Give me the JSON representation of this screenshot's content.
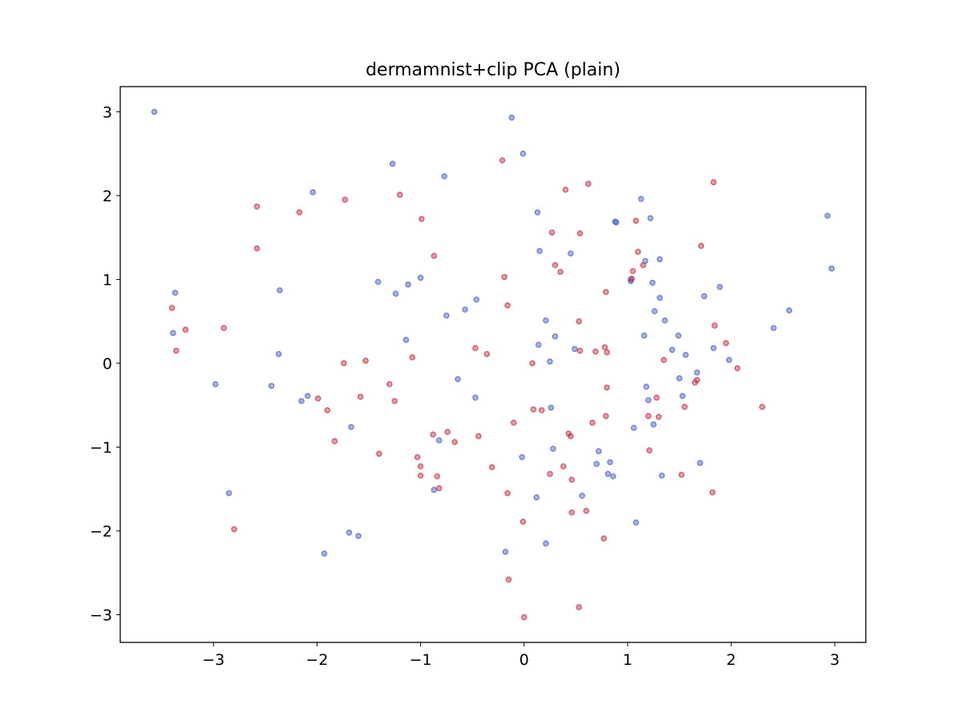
{
  "chart_data": {
    "type": "scatter",
    "title": "dermamnist+clip PCA (plain)",
    "xlabel": "",
    "ylabel": "",
    "xlim": [
      -3.9,
      3.3
    ],
    "ylim": [
      -3.33,
      3.3
    ],
    "xticks": [
      -3,
      -2,
      -1,
      0,
      1,
      2,
      3
    ],
    "yticks": [
      -3,
      -2,
      -1,
      0,
      1,
      2,
      3
    ],
    "xtick_labels": [
      "−3",
      "−2",
      "−1",
      "0",
      "1",
      "2",
      "3"
    ],
    "ytick_labels": [
      "−3",
      "−2",
      "−1",
      "0",
      "1",
      "2",
      "3"
    ],
    "grid": false,
    "legend": false,
    "series": [
      {
        "color": "#4a63c9",
        "points": [
          [
            -3.57,
            3.0
          ],
          [
            -0.12,
            2.93
          ],
          [
            -0.01,
            2.5
          ],
          [
            -1.27,
            2.38
          ],
          [
            -0.77,
            2.23
          ],
          [
            -2.04,
            2.04
          ],
          [
            1.13,
            1.96
          ],
          [
            0.13,
            1.8
          ],
          [
            1.22,
            1.73
          ],
          [
            0.88,
            1.69
          ],
          [
            0.89,
            1.68
          ],
          [
            2.93,
            1.76
          ],
          [
            0.15,
            1.34
          ],
          [
            0.45,
            1.31
          ],
          [
            1.17,
            1.22
          ],
          [
            1.31,
            1.24
          ],
          [
            2.97,
            1.13
          ],
          [
            -1.0,
            1.02
          ],
          [
            1.03,
            1.0
          ],
          [
            1.03,
            0.98
          ],
          [
            -1.41,
            0.97
          ],
          [
            -1.12,
            0.94
          ],
          [
            1.24,
            0.96
          ],
          [
            1.89,
            0.91
          ],
          [
            -2.36,
            0.87
          ],
          [
            -3.37,
            0.84
          ],
          [
            -1.24,
            0.83
          ],
          [
            1.74,
            0.8
          ],
          [
            1.31,
            0.78
          ],
          [
            -0.46,
            0.76
          ],
          [
            -0.57,
            0.64
          ],
          [
            1.26,
            0.62
          ],
          [
            2.56,
            0.63
          ],
          [
            -0.75,
            0.57
          ],
          [
            0.21,
            0.51
          ],
          [
            1.36,
            0.51
          ],
          [
            2.41,
            0.42
          ],
          [
            -3.39,
            0.36
          ],
          [
            1.16,
            0.33
          ],
          [
            1.49,
            0.33
          ],
          [
            0.3,
            0.32
          ],
          [
            -1.14,
            0.28
          ],
          [
            0.14,
            0.22
          ],
          [
            1.43,
            0.16
          ],
          [
            0.49,
            0.17
          ],
          [
            1.83,
            0.18
          ],
          [
            -2.37,
            0.11
          ],
          [
            1.56,
            0.1
          ],
          [
            1.98,
            0.04
          ],
          [
            0.25,
            0.02
          ],
          [
            1.67,
            -0.11
          ],
          [
            -0.64,
            -0.19
          ],
          [
            1.5,
            -0.18
          ],
          [
            -2.98,
            -0.25
          ],
          [
            1.18,
            -0.28
          ],
          [
            -2.44,
            -0.27
          ],
          [
            -2.09,
            -0.39
          ],
          [
            1.53,
            -0.39
          ],
          [
            -0.47,
            -0.41
          ],
          [
            1.2,
            -0.44
          ],
          [
            -2.15,
            -0.45
          ],
          [
            0.26,
            -0.53
          ],
          [
            -1.67,
            -0.76
          ],
          [
            1.06,
            -0.77
          ],
          [
            1.25,
            -0.73
          ],
          [
            -0.82,
            -0.92
          ],
          [
            0.28,
            -1.02
          ],
          [
            0.72,
            -1.05
          ],
          [
            -0.02,
            -1.12
          ],
          [
            0.7,
            -1.2
          ],
          [
            0.83,
            -1.18
          ],
          [
            1.7,
            -1.19
          ],
          [
            0.81,
            -1.32
          ],
          [
            0.86,
            -1.35
          ],
          [
            1.33,
            -1.34
          ],
          [
            -0.87,
            -1.51
          ],
          [
            -2.85,
            -1.55
          ],
          [
            0.56,
            -1.58
          ],
          [
            0.12,
            -1.6
          ],
          [
            1.08,
            -1.9
          ],
          [
            -1.69,
            -2.02
          ],
          [
            -1.6,
            -2.06
          ],
          [
            0.21,
            -2.15
          ],
          [
            -0.18,
            -2.25
          ],
          [
            -1.93,
            -2.27
          ]
        ]
      },
      {
        "color": "#c53548",
        "points": [
          [
            -0.21,
            2.42
          ],
          [
            1.83,
            2.16
          ],
          [
            0.62,
            2.14
          ],
          [
            0.4,
            2.07
          ],
          [
            -1.2,
            2.01
          ],
          [
            -1.73,
            1.95
          ],
          [
            -2.58,
            1.87
          ],
          [
            -2.17,
            1.8
          ],
          [
            -0.99,
            1.72
          ],
          [
            1.08,
            1.7
          ],
          [
            0.27,
            1.56
          ],
          [
            0.54,
            1.55
          ],
          [
            1.71,
            1.4
          ],
          [
            -2.58,
            1.37
          ],
          [
            1.1,
            1.33
          ],
          [
            -0.87,
            1.28
          ],
          [
            0.3,
            1.17
          ],
          [
            1.15,
            1.17
          ],
          [
            1.05,
            1.1
          ],
          [
            0.35,
            1.09
          ],
          [
            -0.19,
            1.03
          ],
          [
            1.04,
            1.01
          ],
          [
            0.79,
            0.85
          ],
          [
            -0.16,
            0.69
          ],
          [
            -3.4,
            0.66
          ],
          [
            0.53,
            0.5
          ],
          [
            1.84,
            0.45
          ],
          [
            -2.9,
            0.42
          ],
          [
            -3.27,
            0.4
          ],
          [
            1.95,
            0.24
          ],
          [
            0.78,
            0.19
          ],
          [
            -0.47,
            0.18
          ],
          [
            -3.36,
            0.15
          ],
          [
            0.54,
            0.15
          ],
          [
            0.69,
            0.14
          ],
          [
            0.8,
            0.13
          ],
          [
            -0.36,
            0.11
          ],
          [
            -1.08,
            0.07
          ],
          [
            -1.53,
            0.03
          ],
          [
            -1.74,
            0.0
          ],
          [
            0.08,
            0.0
          ],
          [
            1.35,
            0.04
          ],
          [
            2.06,
            -0.06
          ],
          [
            1.67,
            -0.2
          ],
          [
            1.65,
            -0.23
          ],
          [
            -1.3,
            -0.25
          ],
          [
            0.8,
            -0.29
          ],
          [
            -1.58,
            -0.4
          ],
          [
            -1.99,
            -0.42
          ],
          [
            1.28,
            -0.41
          ],
          [
            -1.25,
            -0.45
          ],
          [
            2.3,
            -0.52
          ],
          [
            1.55,
            -0.52
          ],
          [
            0.09,
            -0.55
          ],
          [
            0.17,
            -0.56
          ],
          [
            -1.9,
            -0.56
          ],
          [
            0.79,
            -0.63
          ],
          [
            1.2,
            -0.63
          ],
          [
            1.3,
            -0.64
          ],
          [
            -0.1,
            -0.71
          ],
          [
            0.66,
            -0.71
          ],
          [
            -0.74,
            -0.82
          ],
          [
            -0.88,
            -0.85
          ],
          [
            0.43,
            -0.84
          ],
          [
            0.45,
            -0.87
          ],
          [
            -0.44,
            -0.87
          ],
          [
            -1.83,
            -0.93
          ],
          [
            -0.67,
            -0.94
          ],
          [
            1.21,
            -1.04
          ],
          [
            -1.4,
            -1.08
          ],
          [
            -1.03,
            -1.12
          ],
          [
            -1.0,
            -1.23
          ],
          [
            0.38,
            -1.23
          ],
          [
            -0.31,
            -1.24
          ],
          [
            0.25,
            -1.32
          ],
          [
            1.52,
            -1.33
          ],
          [
            -1.0,
            -1.34
          ],
          [
            -0.84,
            -1.35
          ],
          [
            0.46,
            -1.39
          ],
          [
            -0.82,
            -1.49
          ],
          [
            1.82,
            -1.54
          ],
          [
            -0.16,
            -1.55
          ],
          [
            0.6,
            -1.76
          ],
          [
            0.46,
            -1.78
          ],
          [
            -0.01,
            -1.89
          ],
          [
            -2.8,
            -1.98
          ],
          [
            0.77,
            -2.09
          ],
          [
            -0.15,
            -2.58
          ],
          [
            0.53,
            -2.91
          ],
          [
            0.0,
            -3.03
          ]
        ]
      }
    ]
  }
}
